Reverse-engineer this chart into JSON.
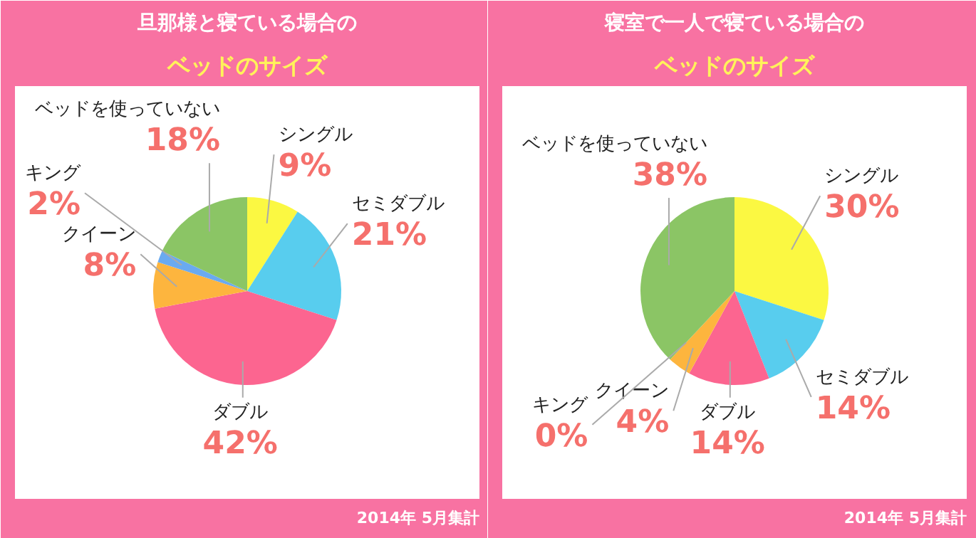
{
  "chart_data": [
    {
      "type": "pie",
      "title": "旦那様と寝ている場合の",
      "subtitle": "ベッドのサイズ",
      "categories": [
        "シングル",
        "セミダブル",
        "ダブル",
        "クイーン",
        "キング",
        "ベッドを使っていない"
      ],
      "values": [
        9,
        21,
        42,
        8,
        2,
        18
      ],
      "colors": [
        "#fbf842",
        "#58cdee",
        "#fc6590",
        "#fdb53e",
        "#6aaaf0",
        "#8bc565"
      ],
      "value_labels": [
        "9%",
        "21%",
        "42%",
        "8%",
        "2%",
        "18%"
      ],
      "annotations": [
        "2014年 5月集計"
      ]
    },
    {
      "type": "pie",
      "title": "寝室で一人で寝ている場合の",
      "subtitle": "ベッドのサイズ",
      "categories": [
        "シングル",
        "セミダブル",
        "ダブル",
        "クイーン",
        "キング",
        "ベッドを使っていない"
      ],
      "values": [
        30,
        14,
        14,
        4,
        0,
        38
      ],
      "colors": [
        "#fbf842",
        "#58cdee",
        "#fc6590",
        "#fdb53e",
        "#6aaaf0",
        "#8bc565"
      ],
      "value_labels": [
        "30%",
        "14%",
        "14%",
        "4%",
        "0%",
        "38%"
      ],
      "annotations": [
        "2014年 5月集計"
      ]
    }
  ]
}
